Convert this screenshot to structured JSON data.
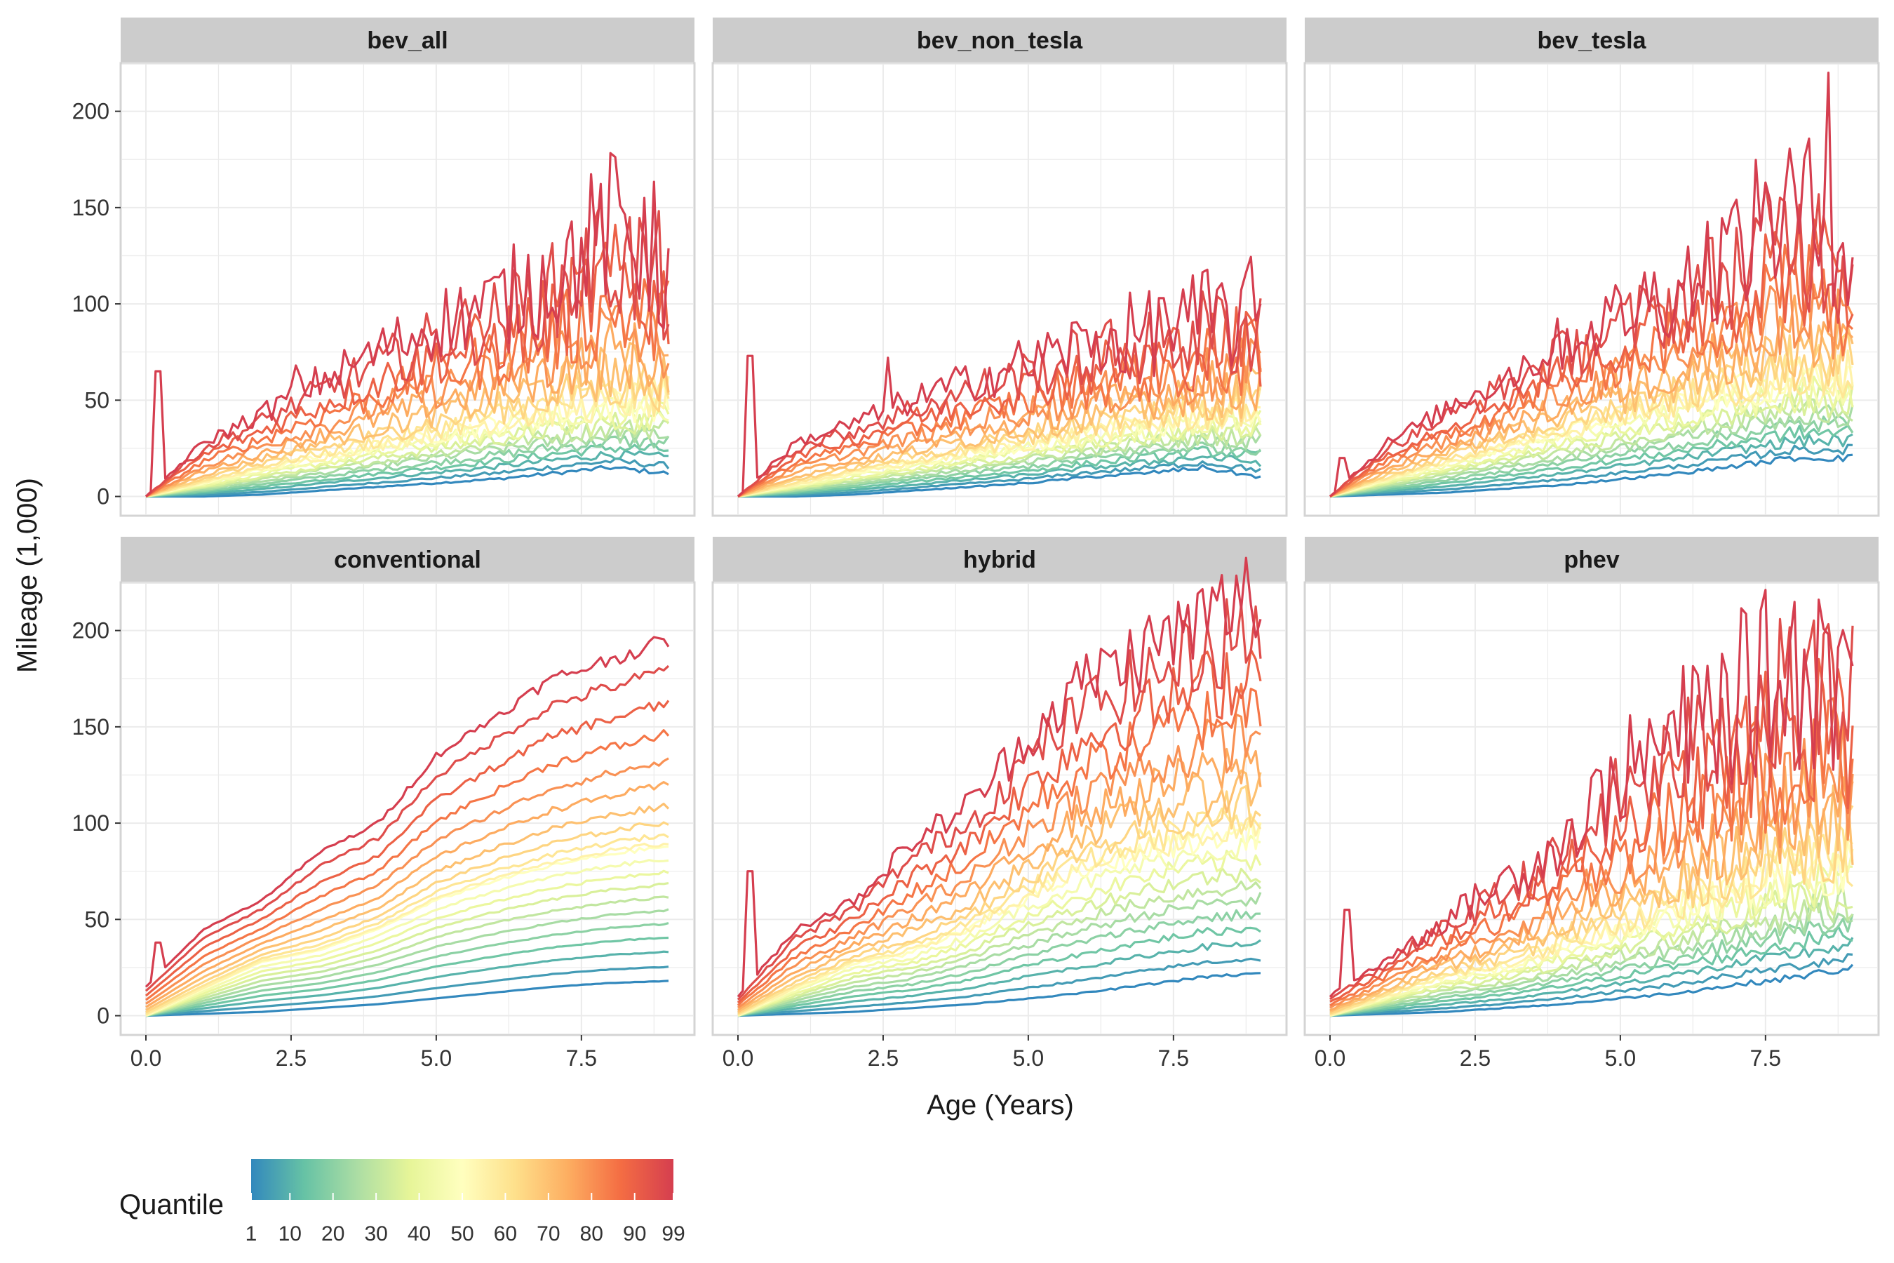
{
  "chart_data": {
    "type": "line",
    "layout": "facet_wrap 3 columns x 2 rows, shared axes",
    "xlabel": "Age (Years)",
    "ylabel": "Mileage (1,000)",
    "xlim": [
      0,
      9
    ],
    "ylim": [
      0,
      225
    ],
    "x_ticks": [
      "0.0",
      "2.5",
      "5.0",
      "7.5"
    ],
    "y_ticks": [
      "0",
      "50",
      "100",
      "150",
      "200"
    ],
    "grid": true,
    "legend": {
      "title": "Quantile",
      "placement": "bottom-left",
      "type": "colorbar",
      "palette": "Spectral",
      "colors": [
        "#3288bd",
        "#66c2a5",
        "#abdda4",
        "#e6f598",
        "#ffffbf",
        "#fee08b",
        "#fdae61",
        "#f46d43",
        "#d53e4f"
      ],
      "range": [
        1,
        99
      ],
      "ticks": [
        "1",
        "10",
        "20",
        "30",
        "40",
        "50",
        "60",
        "70",
        "80",
        "90",
        "99"
      ]
    },
    "quantiles_drawn": [
      1,
      5,
      10,
      15,
      20,
      25,
      30,
      35,
      40,
      45,
      50,
      55,
      60,
      65,
      70,
      75,
      80,
      85,
      90,
      95,
      99
    ],
    "panels": [
      {
        "name": "bev_all",
        "x": [
          0,
          1,
          2,
          3,
          4,
          5,
          6,
          7,
          8,
          9
        ],
        "q1": [
          0,
          0,
          1,
          3,
          5,
          7,
          9,
          12,
          15,
          12
        ],
        "q50": [
          0,
          7,
          14,
          20,
          26,
          32,
          38,
          43,
          47,
          50
        ],
        "q99": [
          0,
          28,
          43,
          60,
          75,
          90,
          100,
          115,
          140,
          120
        ],
        "spikes": [
          {
            "x": 0.2,
            "y": 65
          },
          {
            "x": 2.6,
            "y": 68
          },
          {
            "x": 8.6,
            "y": 155
          }
        ]
      },
      {
        "name": "bev_non_tesla",
        "x": [
          0,
          1,
          2,
          3,
          4,
          5,
          6,
          7,
          8,
          9
        ],
        "q1": [
          0,
          0,
          1,
          3,
          5,
          7,
          10,
          12,
          15,
          10
        ],
        "q50": [
          0,
          6,
          12,
          17,
          22,
          27,
          32,
          37,
          41,
          45
        ],
        "q99": [
          0,
          28,
          38,
          50,
          60,
          70,
          80,
          85,
          92,
          95
        ],
        "spikes": [
          {
            "x": 0.2,
            "y": 73
          },
          {
            "x": 2.6,
            "y": 72
          },
          {
            "x": 7.3,
            "y": 103
          }
        ]
      },
      {
        "name": "bev_tesla",
        "x": [
          0,
          1,
          2,
          3,
          4,
          5,
          6,
          7,
          8,
          9
        ],
        "q1": [
          0,
          1,
          2,
          4,
          6,
          9,
          12,
          16,
          20,
          20
        ],
        "q50": [
          0,
          9,
          17,
          25,
          33,
          40,
          47,
          54,
          60,
          62
        ],
        "q99": [
          0,
          28,
          45,
          62,
          80,
          95,
          110,
          130,
          150,
          130
        ],
        "spikes": [
          {
            "x": 0.2,
            "y": 20
          },
          {
            "x": 7.5,
            "y": 163
          },
          {
            "x": 8.6,
            "y": 220
          }
        ]
      },
      {
        "name": "conventional",
        "x": [
          0,
          1,
          2,
          3,
          4,
          5,
          6,
          7,
          8,
          9
        ],
        "q1": [
          0,
          1,
          2,
          4,
          6,
          9,
          12,
          15,
          17,
          18
        ],
        "q50": [
          0,
          14,
          28,
          34,
          45,
          60,
          70,
          78,
          84,
          88
        ],
        "q99": [
          15,
          45,
          60,
          85,
          100,
          135,
          155,
          175,
          185,
          195
        ],
        "spikes": [
          {
            "x": 0.2,
            "y": 38
          }
        ]
      },
      {
        "name": "hybrid",
        "x": [
          0,
          1,
          2,
          3,
          4,
          5,
          6,
          7,
          8,
          9
        ],
        "q1": [
          0,
          1,
          2,
          4,
          6,
          9,
          12,
          16,
          20,
          22
        ],
        "q50": [
          0,
          14,
          27,
          33,
          45,
          62,
          75,
          85,
          92,
          95
        ],
        "q99": [
          10,
          45,
          60,
          90,
          110,
          145,
          175,
          190,
          205,
          220
        ],
        "spikes": [
          {
            "x": 0.2,
            "y": 75
          }
        ]
      },
      {
        "name": "phev",
        "x": [
          0,
          1,
          2,
          3,
          4,
          5,
          6,
          7,
          8,
          9
        ],
        "q1": [
          0,
          1,
          2,
          4,
          6,
          9,
          12,
          16,
          20,
          25
        ],
        "q50": [
          0,
          10,
          20,
          25,
          35,
          45,
          55,
          65,
          75,
          80
        ],
        "q99": [
          10,
          30,
          50,
          70,
          90,
          125,
          145,
          165,
          180,
          185
        ],
        "spikes": [
          {
            "x": 0.3,
            "y": 55
          },
          {
            "x": 8.6,
            "y": 198
          }
        ]
      }
    ]
  }
}
